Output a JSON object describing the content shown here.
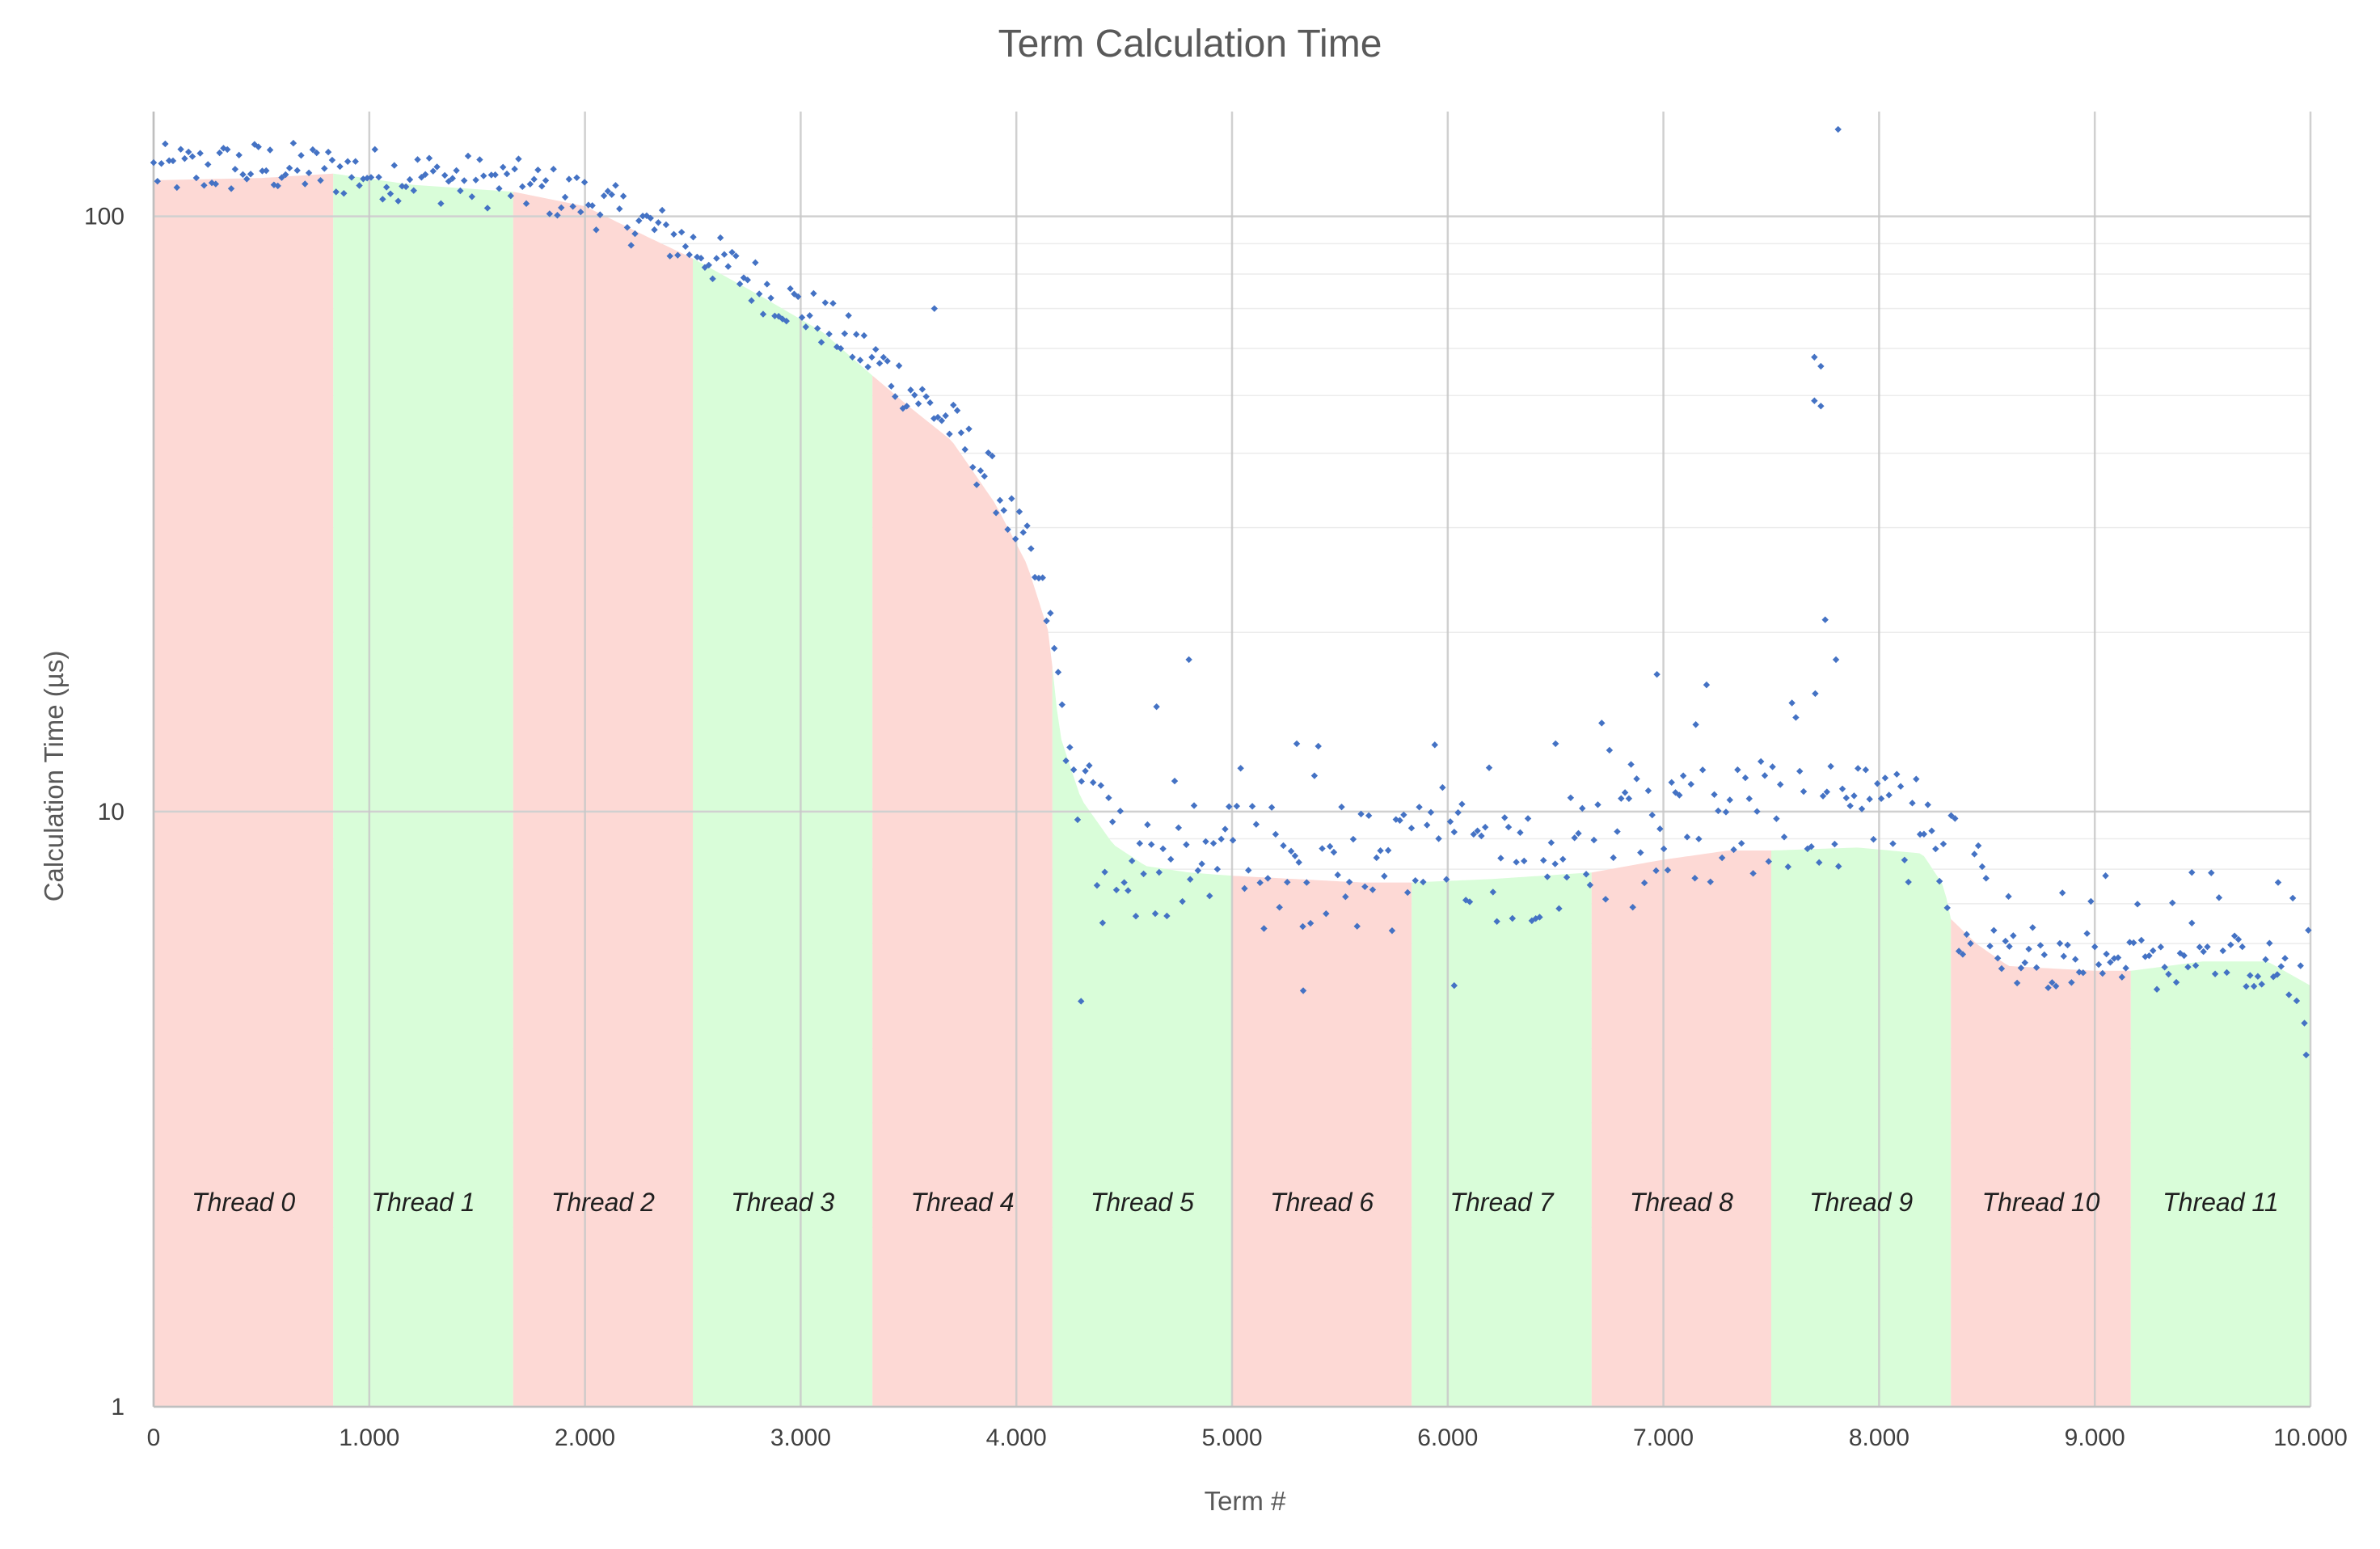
{
  "chart_data": {
    "type": "scatter",
    "title": "Term Calculation Time",
    "xlabel": "Term #",
    "ylabel": "Calculation Time (µs)",
    "xlim": [
      0,
      10000
    ],
    "ylim": [
      1,
      150
    ],
    "y_scale": "log",
    "grid": true,
    "x_ticks": [
      0,
      1000,
      2000,
      3000,
      4000,
      5000,
      6000,
      7000,
      8000,
      9000,
      10000
    ],
    "x_tick_labels": [
      "0",
      "1.000",
      "2.000",
      "3.000",
      "4.000",
      "5.000",
      "6.000",
      "7.000",
      "8.000",
      "9.000",
      "10.000"
    ],
    "y_ticks": [
      1,
      10,
      100
    ],
    "y_tick_labels": [
      "1",
      "10",
      "100"
    ],
    "threads": [
      {
        "label": "Thread 0",
        "start": 0,
        "end": 833,
        "color": "#fdd9d5"
      },
      {
        "label": "Thread 1",
        "start": 833,
        "end": 1667,
        "color": "#d9fdd9"
      },
      {
        "label": "Thread 2",
        "start": 1667,
        "end": 2500,
        "color": "#fdd9d5"
      },
      {
        "label": "Thread 3",
        "start": 2500,
        "end": 3333,
        "color": "#d9fdd9"
      },
      {
        "label": "Thread 4",
        "start": 3333,
        "end": 4167,
        "color": "#fdd9d5"
      },
      {
        "label": "Thread 5",
        "start": 4167,
        "end": 5000,
        "color": "#d9fdd9"
      },
      {
        "label": "Thread 6",
        "start": 5000,
        "end": 5833,
        "color": "#fdd9d5"
      },
      {
        "label": "Thread 7",
        "start": 5833,
        "end": 6667,
        "color": "#d9fdd9"
      },
      {
        "label": "Thread 8",
        "start": 6667,
        "end": 7500,
        "color": "#fdd9d5"
      },
      {
        "label": "Thread 9",
        "start": 7500,
        "end": 8333,
        "color": "#d9fdd9"
      },
      {
        "label": "Thread 10",
        "start": 8333,
        "end": 9167,
        "color": "#fdd9d5"
      },
      {
        "label": "Thread 11",
        "start": 9167,
        "end": 10000,
        "color": "#d9fdd9"
      }
    ],
    "area_profile": {
      "x": [
        0,
        500,
        833,
        1200,
        1667,
        2000,
        2300,
        2500,
        2800,
        3100,
        3333,
        3500,
        3700,
        3900,
        4050,
        4150,
        4167,
        4200,
        4300,
        4450,
        4600,
        4800,
        5000,
        5300,
        5600,
        5833,
        6200,
        6667,
        7000,
        7300,
        7500,
        7900,
        8200,
        8300,
        8333,
        8450,
        8600,
        9000,
        9167,
        9500,
        9800,
        10000
      ],
      "y": [
        115,
        116,
        118,
        113,
        110,
        104,
        92,
        85,
        74,
        64,
        54,
        48,
        42,
        33,
        26,
        20,
        17.5,
        13.5,
        10.5,
        8.8,
        8.1,
        7.9,
        7.8,
        7.7,
        7.6,
        7.6,
        7.7,
        7.9,
        8.3,
        8.6,
        8.6,
        8.7,
        8.5,
        7.5,
        6.6,
        6.0,
        5.5,
        5.4,
        5.4,
        5.6,
        5.6,
        5.1
      ]
    },
    "trend": {
      "x": [
        0,
        500,
        833,
        1200,
        1667,
        2000,
        2300,
        2500,
        2800,
        3100,
        3333,
        3500,
        3700,
        3900,
        4050,
        4150,
        4200,
        4250,
        4350,
        4500,
        4700,
        5000,
        5500,
        6000,
        6500,
        7000,
        7300,
        7500,
        7900,
        8200,
        8300,
        8400,
        8500,
        8700,
        9000,
        9300,
        9600,
        9850,
        9950,
        10000
      ],
      "y": [
        118,
        120,
        118,
        116,
        112,
        106,
        95,
        88,
        76,
        66,
        57,
        51,
        44,
        35,
        27,
        21,
        16,
        11.5,
        9.0,
        8.2,
        7.9,
        7.8,
        7.7,
        7.9,
        8.3,
        8.7,
        9.1,
        9.1,
        9.2,
        9.0,
        8.2,
        6.8,
        5.9,
        5.5,
        5.4,
        5.5,
        5.6,
        5.4,
        5.0,
        4.5
      ]
    },
    "outliers": [
      {
        "x": 7700,
        "y": 58
      },
      {
        "x": 7730,
        "y": 56
      },
      {
        "x": 7700,
        "y": 49
      },
      {
        "x": 7730,
        "y": 48
      },
      {
        "x": 7810,
        "y": 140
      },
      {
        "x": 7750,
        "y": 21
      },
      {
        "x": 7800,
        "y": 18
      },
      {
        "x": 3620,
        "y": 70
      },
      {
        "x": 4800,
        "y": 18
      },
      {
        "x": 4650,
        "y": 15
      },
      {
        "x": 6970,
        "y": 17
      },
      {
        "x": 4300,
        "y": 4.8
      },
      {
        "x": 5330,
        "y": 5.0
      },
      {
        "x": 6030,
        "y": 5.1
      },
      {
        "x": 5300,
        "y": 13
      },
      {
        "x": 7150,
        "y": 14
      },
      {
        "x": 4400,
        "y": 6.5
      },
      {
        "x": 8600,
        "y": 7.2
      },
      {
        "x": 8850,
        "y": 7.3
      },
      {
        "x": 9050,
        "y": 7.8
      },
      {
        "x": 9450,
        "y": 7.9
      },
      {
        "x": 9850,
        "y": 7.6
      },
      {
        "x": 9980,
        "y": 3.9
      },
      {
        "x": 6500,
        "y": 13
      },
      {
        "x": 6850,
        "y": 12
      }
    ],
    "series": [
      {
        "color": "#4472c4"
      }
    ]
  }
}
